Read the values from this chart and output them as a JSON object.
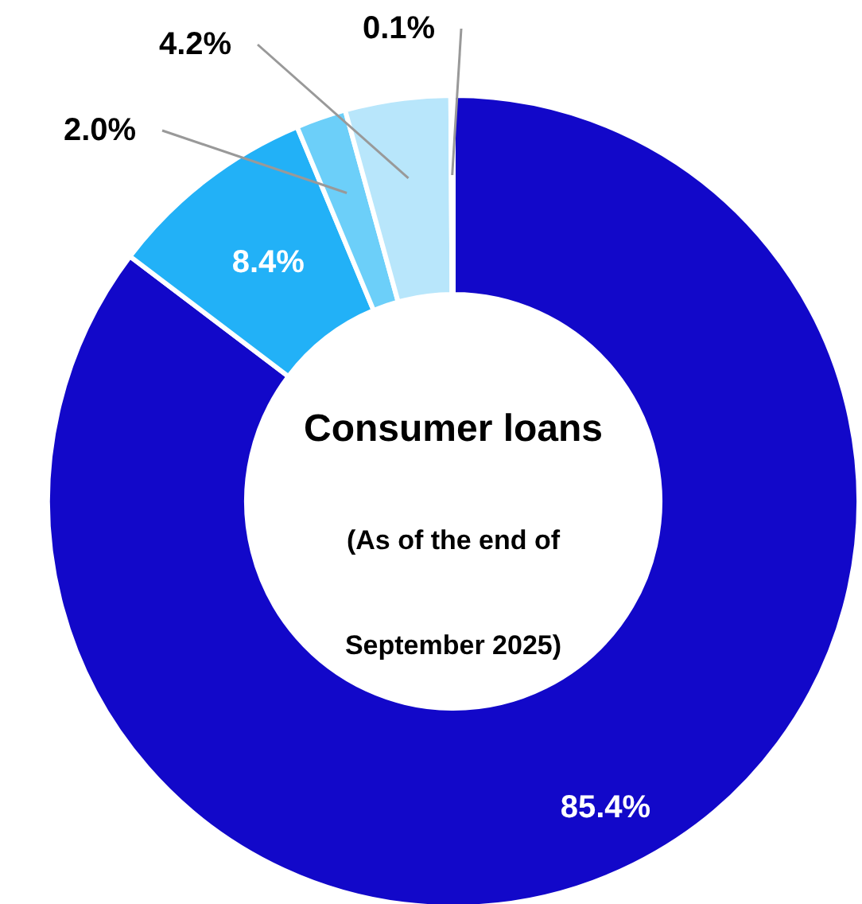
{
  "chart_data": {
    "type": "donut",
    "title": "Consumer loans",
    "subtitle": "(As of the end of September 2025)",
    "categories": [
      null,
      null,
      null,
      null,
      null
    ],
    "values": [
      85.4,
      8.4,
      2.0,
      4.2,
      0.1
    ],
    "value_labels": [
      "85.4%",
      "8.4%",
      "2.0%",
      "4.2%",
      "0.1%"
    ],
    "colors": [
      "#1208c9",
      "#22b1f7",
      "#6ccff9",
      "#b8e6fb",
      "#dff3fd"
    ]
  }
}
